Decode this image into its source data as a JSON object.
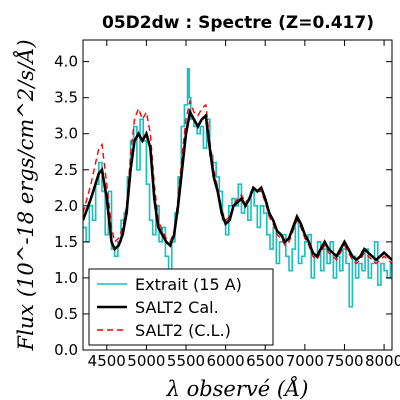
{
  "chart_data": {
    "type": "line",
    "title": "05D2dw : Spectre (Z=0.417)",
    "xlabel": "λ observé (Å)",
    "ylabel": "Flux (10^-18 ergs/cm^2/s/Å)",
    "xlim": [
      4200,
      8100
    ],
    "ylim": [
      0.0,
      4.3
    ],
    "xticks": [
      4500,
      5000,
      5500,
      6000,
      6500,
      7000,
      7500,
      8000
    ],
    "yticks": [
      0.0,
      0.5,
      1.0,
      1.5,
      2.0,
      2.5,
      3.0,
      3.5,
      4.0
    ],
    "grid": false,
    "legend_position": "lower-left",
    "series": [
      {
        "name": "Extrait (15 A)",
        "style": "step",
        "color": "#17bfbf",
        "x": [
          4200,
          4240,
          4280,
          4320,
          4360,
          4400,
          4440,
          4480,
          4520,
          4560,
          4600,
          4640,
          4680,
          4720,
          4760,
          4800,
          4840,
          4880,
          4920,
          4960,
          5000,
          5040,
          5080,
          5120,
          5160,
          5200,
          5240,
          5280,
          5320,
          5360,
          5400,
          5440,
          5480,
          5520,
          5540,
          5560,
          5600,
          5640,
          5680,
          5720,
          5760,
          5800,
          5840,
          5880,
          5920,
          5960,
          6000,
          6040,
          6080,
          6120,
          6160,
          6200,
          6240,
          6280,
          6320,
          6360,
          6400,
          6440,
          6480,
          6520,
          6560,
          6600,
          6640,
          6680,
          6720,
          6760,
          6800,
          6840,
          6880,
          6920,
          6960,
          7000,
          7040,
          7080,
          7120,
          7160,
          7200,
          7240,
          7280,
          7320,
          7360,
          7400,
          7440,
          7480,
          7520,
          7560,
          7600,
          7640,
          7680,
          7720,
          7760,
          7800,
          7840,
          7880,
          7920,
          7960,
          8000,
          8040,
          8080,
          8100
        ],
        "y": [
          1.7,
          1.5,
          2.0,
          1.8,
          2.3,
          2.6,
          2.2,
          1.6,
          2.2,
          1.4,
          1.3,
          1.5,
          1.8,
          1.9,
          2.4,
          2.9,
          3.1,
          2.5,
          3.2,
          2.9,
          2.3,
          1.8,
          1.6,
          2.0,
          1.5,
          1.7,
          1.3,
          1.0,
          1.5,
          1.9,
          2.4,
          3.1,
          3.4,
          3.9,
          3.5,
          3.2,
          3.1,
          3.0,
          3.1,
          2.8,
          3.2,
          2.7,
          2.6,
          2.4,
          2.2,
          1.8,
          1.6,
          2.0,
          2.1,
          2.0,
          2.3,
          1.9,
          2.0,
          1.8,
          2.2,
          2.0,
          1.7,
          2.0,
          1.9,
          1.6,
          1.4,
          1.7,
          1.2,
          1.5,
          1.6,
          1.3,
          1.1,
          1.4,
          1.8,
          1.2,
          1.3,
          1.5,
          1.6,
          1.0,
          1.3,
          1.5,
          1.1,
          1.4,
          1.2,
          1.5,
          1.0,
          1.3,
          1.1,
          1.4,
          1.2,
          0.6,
          1.3,
          1.0,
          1.2,
          1.1,
          1.4,
          1.0,
          1.2,
          1.5,
          0.9,
          1.2,
          1.1,
          1.0,
          1.2,
          1.1
        ]
      },
      {
        "name": "SALT2 Cal.",
        "style": "line",
        "color": "#000000",
        "x": [
          4200,
          4300,
          4400,
          4440,
          4500,
          4560,
          4600,
          4650,
          4700,
          4750,
          4800,
          4850,
          4900,
          4950,
          5000,
          5050,
          5100,
          5150,
          5200,
          5250,
          5300,
          5350,
          5400,
          5450,
          5500,
          5550,
          5600,
          5650,
          5700,
          5750,
          5800,
          5850,
          5900,
          5950,
          6000,
          6050,
          6100,
          6150,
          6200,
          6250,
          6300,
          6350,
          6400,
          6450,
          6500,
          6550,
          6600,
          6650,
          6700,
          6750,
          6800,
          6850,
          6900,
          6950,
          7000,
          7050,
          7100,
          7150,
          7200,
          7250,
          7300,
          7350,
          7400,
          7450,
          7500,
          7550,
          7600,
          7650,
          7700,
          7750,
          7800,
          7850,
          7900,
          7950,
          8000,
          8050,
          8100
        ],
        "y": [
          1.8,
          2.1,
          2.45,
          2.5,
          2.1,
          1.5,
          1.4,
          1.45,
          1.6,
          1.9,
          2.5,
          2.9,
          3.0,
          2.9,
          3.0,
          2.8,
          2.1,
          1.7,
          1.6,
          1.5,
          1.45,
          1.6,
          2.0,
          2.5,
          3.0,
          3.3,
          3.2,
          3.1,
          3.2,
          3.25,
          2.8,
          2.4,
          2.2,
          1.9,
          1.75,
          1.8,
          2.0,
          2.05,
          2.1,
          2.0,
          2.1,
          2.25,
          2.2,
          2.25,
          2.1,
          1.9,
          1.8,
          1.65,
          1.6,
          1.5,
          1.55,
          1.7,
          1.85,
          1.75,
          1.6,
          1.5,
          1.35,
          1.3,
          1.4,
          1.5,
          1.4,
          1.35,
          1.3,
          1.4,
          1.5,
          1.4,
          1.3,
          1.25,
          1.3,
          1.4,
          1.35,
          1.3,
          1.25,
          1.3,
          1.35,
          1.3,
          1.25
        ]
      },
      {
        "name": "SALT2 (C.L.)",
        "style": "dashed",
        "color": "#ff0000",
        "x": [
          4200,
          4300,
          4400,
          4440,
          4500,
          4560,
          4600,
          4650,
          4700,
          4750,
          4800,
          4850,
          4900,
          4950,
          5000,
          5050,
          5100,
          5150,
          5200,
          5250,
          5300,
          5350,
          5400,
          5450,
          5500,
          5550,
          5600,
          5650,
          5700,
          5750,
          5800,
          5850,
          5900,
          5950,
          6000,
          6050,
          6100,
          6150,
          6200,
          6250,
          6300,
          6350,
          6400,
          6450,
          6500,
          6550,
          6600,
          6650,
          6700,
          6750,
          6800,
          6850,
          6900,
          6950,
          7000,
          7050,
          7100,
          7150,
          7200,
          7250,
          7300,
          7350,
          7400,
          7450,
          7500,
          7550,
          7600,
          7650,
          7700,
          7750,
          7800,
          7850,
          7900,
          7950,
          8000,
          8050,
          8100
        ],
        "y": [
          1.9,
          2.3,
          2.8,
          2.85,
          2.3,
          1.7,
          1.5,
          1.55,
          1.7,
          2.0,
          2.7,
          3.2,
          3.35,
          3.2,
          3.3,
          3.0,
          2.3,
          1.8,
          1.65,
          1.55,
          1.5,
          1.65,
          2.1,
          2.7,
          3.2,
          3.45,
          3.3,
          3.25,
          3.35,
          3.4,
          2.9,
          2.5,
          2.25,
          1.95,
          1.8,
          1.85,
          2.0,
          2.1,
          2.15,
          2.05,
          2.1,
          2.25,
          2.2,
          2.2,
          2.05,
          1.85,
          1.75,
          1.6,
          1.55,
          1.45,
          1.5,
          1.65,
          1.8,
          1.7,
          1.55,
          1.45,
          1.3,
          1.25,
          1.35,
          1.45,
          1.35,
          1.3,
          1.25,
          1.35,
          1.45,
          1.35,
          1.25,
          1.2,
          1.25,
          1.35,
          1.3,
          1.25,
          1.2,
          1.25,
          1.3,
          1.25,
          1.2
        ]
      }
    ]
  }
}
